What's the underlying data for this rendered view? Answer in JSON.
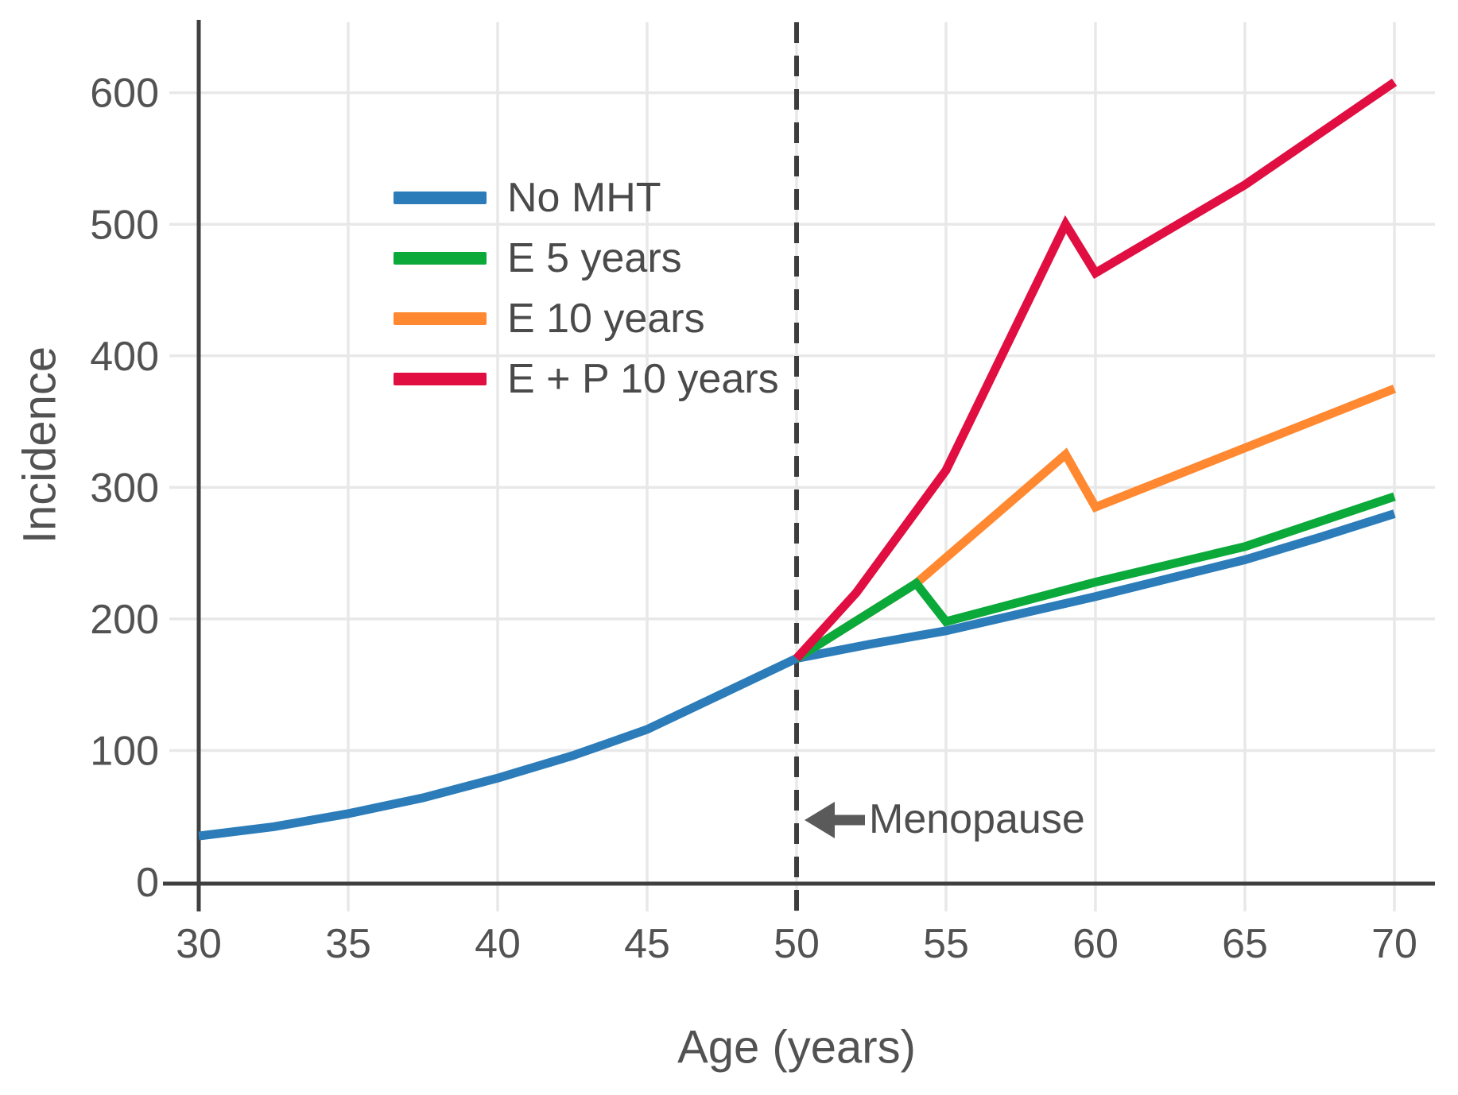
{
  "chart_data": {
    "type": "line",
    "title": "",
    "xlabel": "Age (years)",
    "ylabel": "Incidence",
    "xlim": [
      30,
      70
    ],
    "ylim": [
      0,
      600
    ],
    "xticks": [
      30,
      35,
      40,
      45,
      50,
      55,
      60,
      65,
      70
    ],
    "yticks": [
      0,
      100,
      200,
      300,
      400,
      500,
      600
    ],
    "grid": true,
    "legend_position": "upper-left-inside",
    "series": [
      {
        "name": "No MHT",
        "color": "#2b7cb9",
        "points": [
          [
            30,
            35
          ],
          [
            32.5,
            42
          ],
          [
            35,
            52
          ],
          [
            37.5,
            64
          ],
          [
            40,
            79
          ],
          [
            42.5,
            96
          ],
          [
            45,
            116
          ],
          [
            47.5,
            143
          ],
          [
            50,
            170
          ],
          [
            52.5,
            181
          ],
          [
            55,
            191
          ],
          [
            57.5,
            204
          ],
          [
            60,
            217
          ],
          [
            62.5,
            231
          ],
          [
            65,
            245
          ],
          [
            67.5,
            262
          ],
          [
            70,
            280
          ]
        ]
      },
      {
        "name": "E 5 years",
        "color": "#0aa93a",
        "points": [
          [
            50,
            170
          ],
          [
            54,
            227
          ],
          [
            55,
            198
          ],
          [
            60,
            228
          ],
          [
            65,
            255
          ],
          [
            70,
            293
          ]
        ]
      },
      {
        "name": "E 10 years",
        "color": "#ff8830",
        "points": [
          [
            50,
            170
          ],
          [
            54,
            227
          ],
          [
            59,
            325
          ],
          [
            60,
            285
          ],
          [
            65,
            330
          ],
          [
            70,
            375
          ]
        ]
      },
      {
        "name": "E + P 10 years",
        "color": "#e00e41",
        "points": [
          [
            50,
            170
          ],
          [
            52,
            220
          ],
          [
            55,
            313
          ],
          [
            59,
            500
          ],
          [
            60,
            463
          ],
          [
            65,
            530
          ],
          [
            70,
            608
          ]
        ]
      }
    ],
    "annotations": {
      "menopause": {
        "label": "Menopause",
        "at_age": 50,
        "marker": "dashed-vertical-line",
        "arrow": "left-arrow"
      }
    }
  },
  "colors": {
    "axis": "#3f3f3f",
    "grid": "#e8e8e8",
    "dashed_line": "#3d3d3d",
    "arrow": "#5a5a5a",
    "tick_text": "#525252"
  }
}
